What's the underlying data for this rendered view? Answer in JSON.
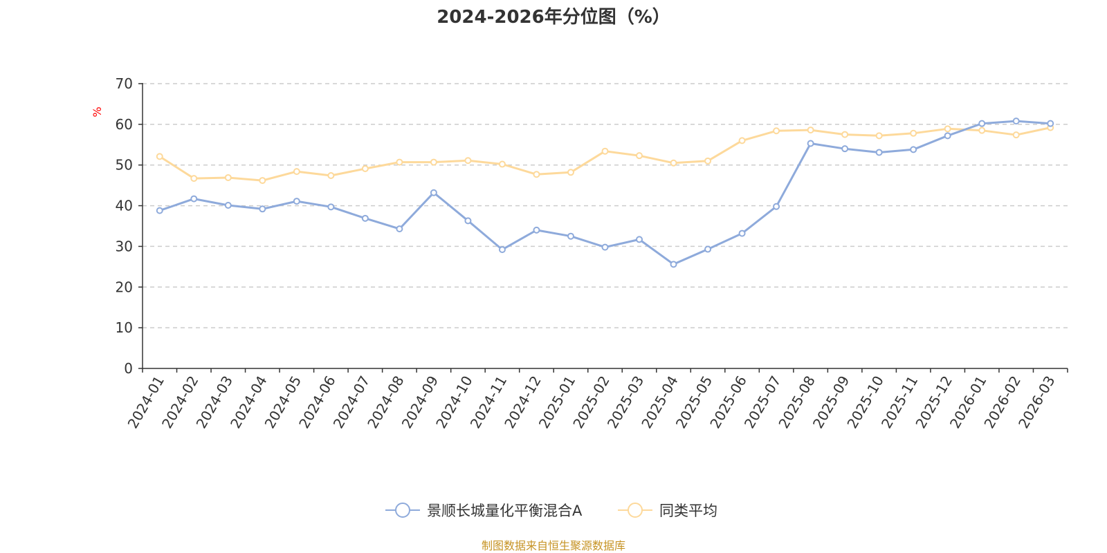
{
  "chart_data": {
    "type": "line",
    "title": "2024-2026年分位图（%）",
    "ylabel": "%",
    "ylim": [
      0,
      70
    ],
    "yticks": [
      0,
      10,
      20,
      30,
      40,
      50,
      60,
      70
    ],
    "grid": true,
    "legend_position": "bottom-center",
    "categories": [
      "2024-01",
      "2024-02",
      "2024-03",
      "2024-04",
      "2024-05",
      "2024-06",
      "2024-07",
      "2024-08",
      "2024-09",
      "2024-10",
      "2024-11",
      "2024-12",
      "2025-01",
      "2025-02",
      "2025-03",
      "2025-04",
      "2025-05",
      "2025-06",
      "2025-07",
      "2025-08",
      "2025-09",
      "2025-10",
      "2025-11",
      "2025-12",
      "2026-01",
      "2026-02",
      "2026-03"
    ],
    "series": [
      {
        "name": "景顺长城量化平衡混合A",
        "color": "#8eaadb",
        "values": [
          38.8,
          41.7,
          40.1,
          39.2,
          41.1,
          39.7,
          36.9,
          34.3,
          43.2,
          36.3,
          29.2,
          34.0,
          32.5,
          29.8,
          31.7,
          25.6,
          29.3,
          33.2,
          39.8,
          55.3,
          54.0,
          53.1,
          53.8,
          57.2,
          60.2,
          60.8,
          60.2
        ]
      },
      {
        "name": "同类平均",
        "color": "#fdd99b",
        "values": [
          52.1,
          46.7,
          46.9,
          46.2,
          48.4,
          47.4,
          49.1,
          50.7,
          50.7,
          51.1,
          50.2,
          47.7,
          48.2,
          53.4,
          52.3,
          50.5,
          51.0,
          56.0,
          58.4,
          58.6,
          57.5,
          57.2,
          57.8,
          58.9,
          58.5,
          57.4,
          59.2
        ]
      }
    ]
  },
  "source_note": "制图数据来自恒生聚源数据库"
}
